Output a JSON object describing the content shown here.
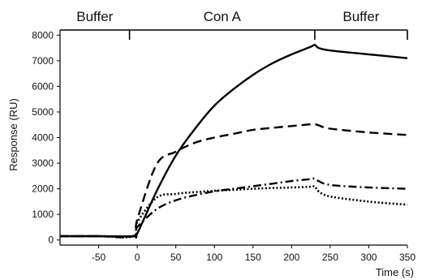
{
  "chart_data": {
    "type": "line",
    "title": "",
    "xlabel": "Time (s)",
    "ylabel": "Response (RU)",
    "xlim": [
      -100,
      350
    ],
    "ylim": [
      -200,
      8200
    ],
    "x_ticks": [
      -50,
      0,
      50,
      100,
      150,
      200,
      250,
      300,
      350
    ],
    "y_ticks": [
      0,
      1000,
      2000,
      3000,
      4000,
      5000,
      6000,
      7000,
      8000
    ],
    "phases": [
      {
        "label": "Buffer",
        "start": -100,
        "end": -10
      },
      {
        "label": "Con A",
        "start": -10,
        "end": 230
      },
      {
        "label": "Buffer",
        "start": 230,
        "end": 350
      }
    ],
    "series": [
      {
        "style": "solid",
        "color": "#000000",
        "x": [
          -100,
          -50,
          -5,
          0,
          25,
          50,
          75,
          100,
          125,
          150,
          175,
          200,
          225,
          230,
          235,
          250,
          300,
          350
        ],
        "y": [
          150,
          150,
          150,
          250,
          1900,
          3300,
          4350,
          5250,
          5900,
          6450,
          6900,
          7250,
          7550,
          7620,
          7500,
          7400,
          7250,
          7100
        ]
      },
      {
        "style": "dashed",
        "color": "#000000",
        "x": [
          -100,
          -50,
          -5,
          0,
          25,
          50,
          75,
          100,
          125,
          150,
          175,
          200,
          225,
          230,
          235,
          250,
          300,
          350
        ],
        "y": [
          150,
          150,
          150,
          800,
          2950,
          3450,
          3800,
          4000,
          4150,
          4300,
          4380,
          4450,
          4520,
          4530,
          4480,
          4350,
          4200,
          4100
        ]
      },
      {
        "style": "dashdot",
        "color": "#000000",
        "x": [
          -100,
          -50,
          -5,
          0,
          25,
          50,
          75,
          100,
          125,
          150,
          175,
          200,
          225,
          230,
          235,
          250,
          300,
          350
        ],
        "y": [
          150,
          150,
          150,
          500,
          1200,
          1550,
          1750,
          1900,
          2000,
          2100,
          2200,
          2300,
          2380,
          2400,
          2300,
          2150,
          2050,
          2000
        ]
      },
      {
        "style": "dotted",
        "color": "#000000",
        "x": [
          -100,
          -50,
          -5,
          0,
          25,
          50,
          75,
          100,
          125,
          150,
          175,
          200,
          225,
          230,
          235,
          250,
          300,
          350
        ],
        "y": [
          150,
          150,
          150,
          700,
          1650,
          1800,
          1870,
          1920,
          1960,
          2000,
          2030,
          2050,
          2080,
          2090,
          1900,
          1700,
          1500,
          1380
        ]
      }
    ]
  }
}
